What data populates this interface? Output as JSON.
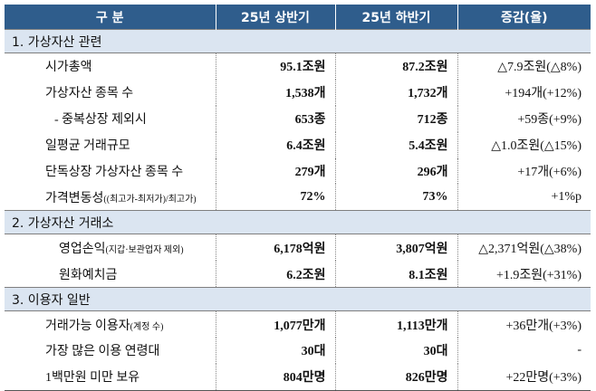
{
  "header": [
    "구 분",
    "25년 상반기",
    "25년 하반기",
    "증감(율)"
  ],
  "sections": [
    {
      "title": "1. 가상자산 관련",
      "rows": [
        {
          "label": "시가총액",
          "cells": [
            "95.1조원",
            "87.2조원",
            "△7.9조원(△8%)"
          ]
        },
        {
          "label": "가상자산 종목 수",
          "cells": [
            "1,538개",
            "1,732개",
            "+194개(+12%)"
          ]
        },
        {
          "label": "- 중복상장 제외시",
          "cells": [
            "653종",
            "712종",
            "+59종(+9%)"
          ]
        },
        {
          "label": "일평균 거래규모",
          "cells": [
            "6.4조원",
            "5.4조원",
            "△1.0조원(△15%)"
          ]
        },
        {
          "label": "단독상장 가상자산 종목 수",
          "cells": [
            "279개",
            "296개",
            "+17개(+6%)"
          ]
        },
        {
          "label": "가격변동성",
          "note": "((최고가-최저가)/최고가)",
          "cells": [
            "72%",
            "73%",
            "+1%p"
          ]
        }
      ]
    },
    {
      "title": "2. 가상자산 거래소",
      "rows": [
        {
          "label": "영업손익",
          "note": "(지갑·보관업자 제외)",
          "cells": [
            "6,178억원",
            "3,807억원",
            "△2,371억원(△38%)"
          ]
        },
        {
          "label": "원화예치금",
          "cells": [
            "6.2조원",
            "8.1조원",
            "+1.9조원(+31%)"
          ]
        }
      ]
    },
    {
      "title": "3. 이용자 일반",
      "rows": [
        {
          "label": "거래가능 이용자",
          "note": "(계정 수)",
          "cells": [
            "1,077만개",
            "1,113만개",
            "+36만개(+3%)"
          ]
        },
        {
          "label": "가장 많은 이용 연령대",
          "cells": [
            "30대",
            "30대",
            "-"
          ]
        },
        {
          "label": "1백만원 미만 보유",
          "cells": [
            "804만명",
            "826만명",
            "+22만명(+3%)"
          ]
        }
      ]
    }
  ]
}
